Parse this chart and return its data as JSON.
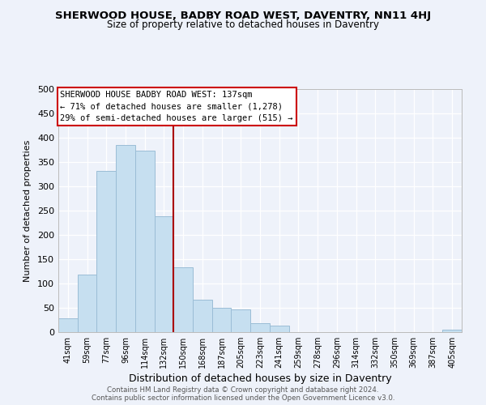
{
  "title": "SHERWOOD HOUSE, BADBY ROAD WEST, DAVENTRY, NN11 4HJ",
  "subtitle": "Size of property relative to detached houses in Daventry",
  "xlabel": "Distribution of detached houses by size in Daventry",
  "ylabel": "Number of detached properties",
  "bar_labels": [
    "41sqm",
    "59sqm",
    "77sqm",
    "96sqm",
    "114sqm",
    "132sqm",
    "150sqm",
    "168sqm",
    "187sqm",
    "205sqm",
    "223sqm",
    "241sqm",
    "259sqm",
    "278sqm",
    "296sqm",
    "314sqm",
    "332sqm",
    "350sqm",
    "369sqm",
    "387sqm",
    "405sqm"
  ],
  "bar_values": [
    28,
    118,
    332,
    385,
    373,
    238,
    133,
    67,
    50,
    46,
    18,
    13,
    0,
    0,
    0,
    0,
    0,
    0,
    0,
    0,
    5
  ],
  "bar_color": "#c6dff0",
  "bar_edge_color": "#9bbdd6",
  "vline_x": 5.5,
  "vline_color": "#aa0000",
  "annotation_line1": "SHERWOOD HOUSE BADBY ROAD WEST: 137sqm",
  "annotation_line2": "← 71% of detached houses are smaller (1,278)",
  "annotation_line3": "29% of semi-detached houses are larger (515) →",
  "ylim": [
    0,
    500
  ],
  "yticks": [
    0,
    50,
    100,
    150,
    200,
    250,
    300,
    350,
    400,
    450,
    500
  ],
  "footer_line1": "Contains HM Land Registry data © Crown copyright and database right 2024.",
  "footer_line2": "Contains public sector information licensed under the Open Government Licence v3.0.",
  "bg_color": "#eef2fa",
  "grid_color": "#ffffff"
}
